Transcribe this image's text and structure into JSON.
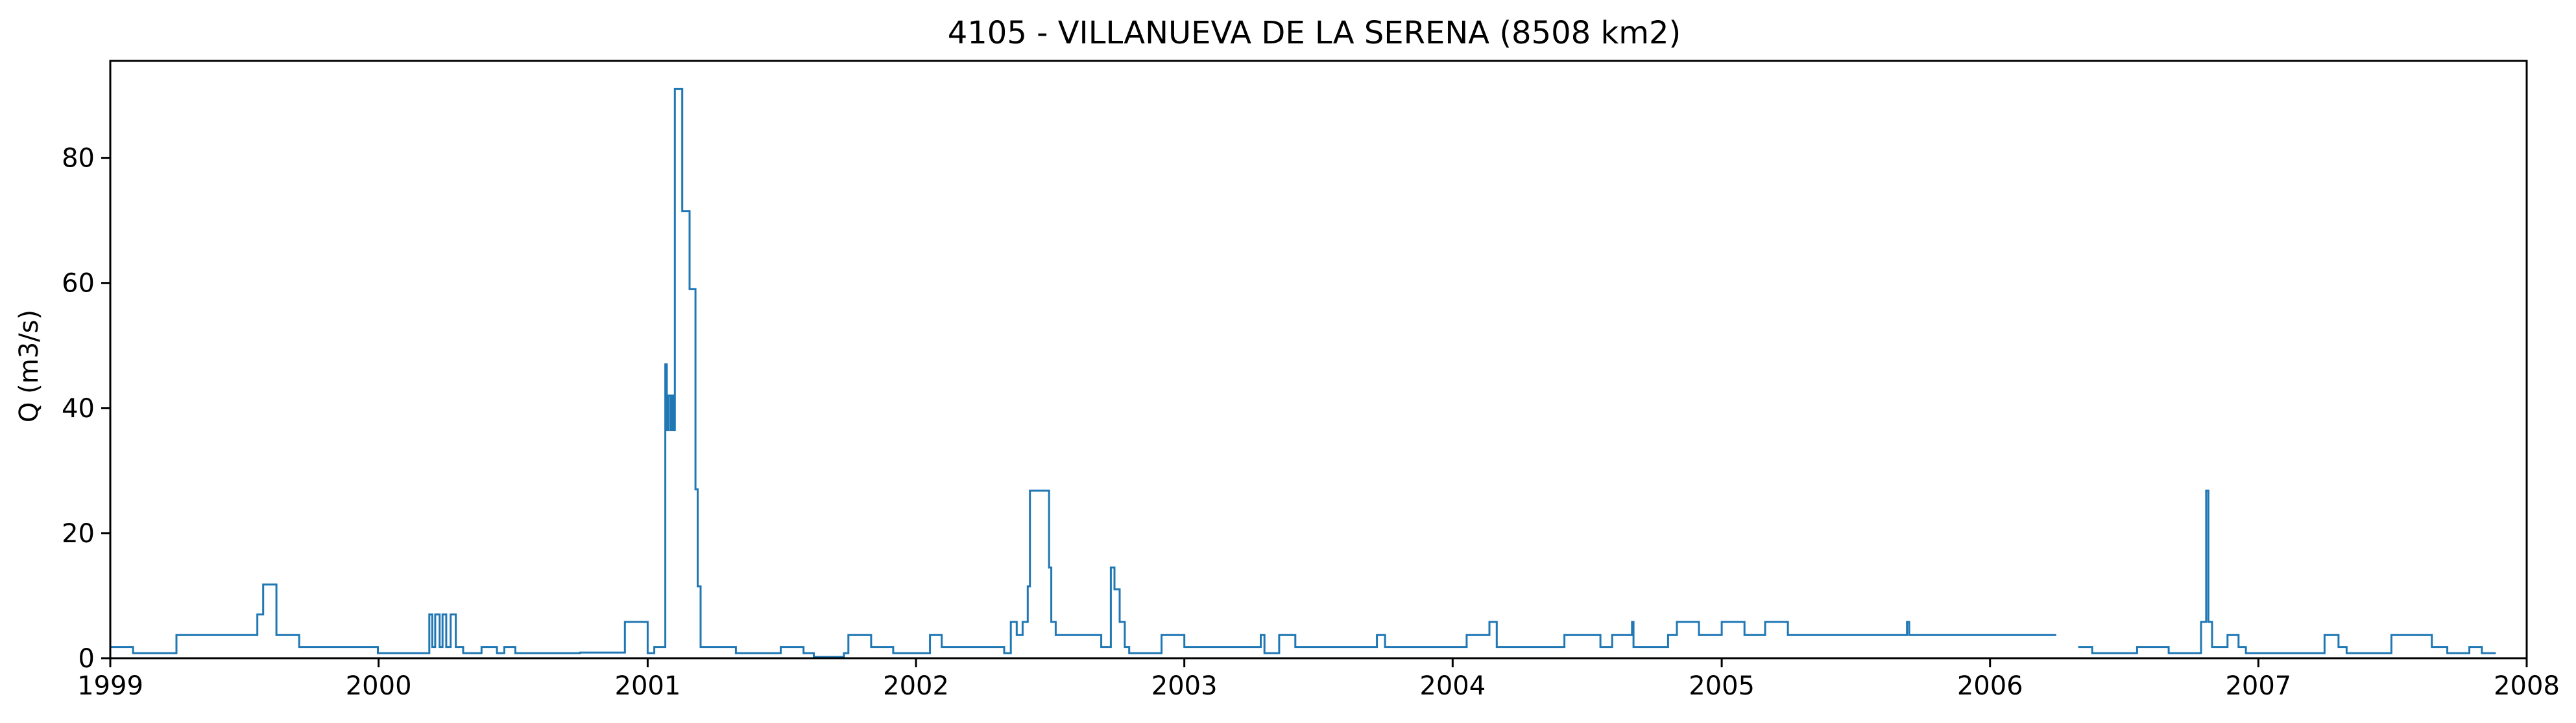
{
  "chart_data": {
    "type": "line",
    "title": "4105 - VILLANUEVA DE LA SERENA (8508 km2)",
    "xlabel": "",
    "ylabel": "Q (m3/s)",
    "x_axis": "date",
    "xlim": [
      "1999-01-01",
      "2008-01-01"
    ],
    "ylim": [
      0,
      95.5
    ],
    "x_ticks": [
      "1999",
      "2000",
      "2001",
      "2002",
      "2003",
      "2004",
      "2005",
      "2006",
      "2007",
      "2008"
    ],
    "y_ticks": [
      0,
      20,
      40,
      60,
      80
    ],
    "grid": false,
    "line_color": "#1f77b4",
    "series": [
      {
        "step": "post",
        "segments": [
          [
            [
              "1999-01-01",
              1.8
            ],
            [
              "1999-02-01",
              0.8
            ],
            [
              "1999-04-01",
              3.7
            ],
            [
              "1999-07-20",
              7.0
            ],
            [
              "1999-07-28",
              11.8
            ],
            [
              "1999-08-15",
              3.7
            ],
            [
              "1999-09-15",
              1.8
            ],
            [
              "1999-12-31",
              0.8
            ],
            [
              "2000-03-10",
              7.0
            ],
            [
              "2000-03-14",
              1.8
            ],
            [
              "2000-03-18",
              7.0
            ],
            [
              "2000-03-24",
              1.8
            ],
            [
              "2000-03-28",
              7.0
            ],
            [
              "2000-04-02",
              1.8
            ],
            [
              "2000-04-08",
              7.0
            ],
            [
              "2000-04-15",
              1.8
            ],
            [
              "2000-04-25",
              0.8
            ],
            [
              "2000-05-20",
              1.8
            ],
            [
              "2000-06-10",
              0.8
            ],
            [
              "2000-06-20",
              1.8
            ],
            [
              "2000-07-05",
              0.8
            ],
            [
              "2000-10-01",
              0.9
            ],
            [
              "2000-12-01",
              5.8
            ],
            [
              "2001-01-01",
              0.8
            ],
            [
              "2001-01-10",
              1.8
            ],
            [
              "2001-01-25",
              47.0
            ],
            [
              "2001-01-27",
              36.5
            ],
            [
              "2001-01-29",
              42.0
            ],
            [
              "2001-02-01",
              36.5
            ],
            [
              "2001-02-03",
              42.0
            ],
            [
              "2001-02-05",
              36.5
            ],
            [
              "2001-02-07",
              91.0
            ],
            [
              "2001-02-17",
              71.5
            ],
            [
              "2001-02-27",
              59.0
            ],
            [
              "2001-03-07",
              27.0
            ],
            [
              "2001-03-10",
              11.5
            ],
            [
              "2001-03-14",
              1.8
            ],
            [
              "2001-05-01",
              0.8
            ],
            [
              "2001-07-01",
              1.8
            ],
            [
              "2001-08-01",
              0.8
            ],
            [
              "2001-08-15",
              0.2
            ],
            [
              "2001-09-25",
              0.8
            ],
            [
              "2001-10-01",
              3.7
            ],
            [
              "2001-11-01",
              1.8
            ],
            [
              "2001-12-01",
              0.8
            ],
            [
              "2002-01-20",
              3.7
            ],
            [
              "2002-02-05",
              1.8
            ],
            [
              "2002-05-01",
              0.8
            ],
            [
              "2002-05-10",
              5.8
            ],
            [
              "2002-05-18",
              3.7
            ],
            [
              "2002-05-26",
              5.8
            ],
            [
              "2002-06-02",
              11.5
            ],
            [
              "2002-06-05",
              26.8
            ],
            [
              "2002-07-01",
              14.5
            ],
            [
              "2002-07-04",
              5.8
            ],
            [
              "2002-07-10",
              3.7
            ],
            [
              "2002-09-10",
              1.8
            ],
            [
              "2002-09-23",
              14.5
            ],
            [
              "2002-09-28",
              11.0
            ],
            [
              "2002-10-05",
              5.8
            ],
            [
              "2002-10-12",
              1.8
            ],
            [
              "2002-10-18",
              0.8
            ],
            [
              "2002-12-01",
              3.7
            ],
            [
              "2003-01-01",
              1.8
            ],
            [
              "2003-04-15",
              3.7
            ],
            [
              "2003-04-20",
              0.8
            ],
            [
              "2003-05-10",
              3.7
            ],
            [
              "2003-06-01",
              1.8
            ],
            [
              "2003-09-20",
              3.7
            ],
            [
              "2003-10-01",
              1.8
            ],
            [
              "2004-01-20",
              3.7
            ],
            [
              "2004-02-20",
              5.8
            ],
            [
              "2004-03-01",
              1.8
            ],
            [
              "2004-06-01",
              3.7
            ],
            [
              "2004-07-20",
              1.8
            ],
            [
              "2004-08-05",
              3.7
            ],
            [
              "2004-09-01",
              5.8
            ],
            [
              "2004-09-03",
              1.8
            ],
            [
              "2004-10-20",
              3.7
            ],
            [
              "2004-11-01",
              5.8
            ],
            [
              "2004-12-01",
              3.7
            ],
            [
              "2005-01-01",
              5.8
            ],
            [
              "2005-02-01",
              3.7
            ],
            [
              "2005-03-01",
              5.8
            ],
            [
              "2005-04-01",
              3.7
            ],
            [
              "2005-09-10",
              5.8
            ],
            [
              "2005-09-13",
              3.7
            ],
            [
              "2006-04-01",
              3.7
            ]
          ],
          [
            [
              "2006-05-01",
              1.8
            ],
            [
              "2006-05-20",
              0.8
            ],
            [
              "2006-07-20",
              1.8
            ],
            [
              "2006-09-01",
              0.8
            ],
            [
              "2006-10-15",
              5.8
            ],
            [
              "2006-10-22",
              26.8
            ],
            [
              "2006-10-25",
              5.8
            ],
            [
              "2006-10-30",
              1.8
            ],
            [
              "2006-11-20",
              3.7
            ],
            [
              "2006-12-05",
              1.8
            ],
            [
              "2006-12-15",
              0.8
            ],
            [
              "2007-04-01",
              3.7
            ],
            [
              "2007-04-20",
              1.8
            ],
            [
              "2007-05-01",
              0.8
            ],
            [
              "2007-07-01",
              3.7
            ],
            [
              "2007-08-25",
              1.8
            ],
            [
              "2007-09-15",
              0.8
            ],
            [
              "2007-10-15",
              1.8
            ],
            [
              "2007-11-01",
              0.8
            ],
            [
              "2007-11-20",
              0.8
            ]
          ]
        ]
      }
    ]
  }
}
